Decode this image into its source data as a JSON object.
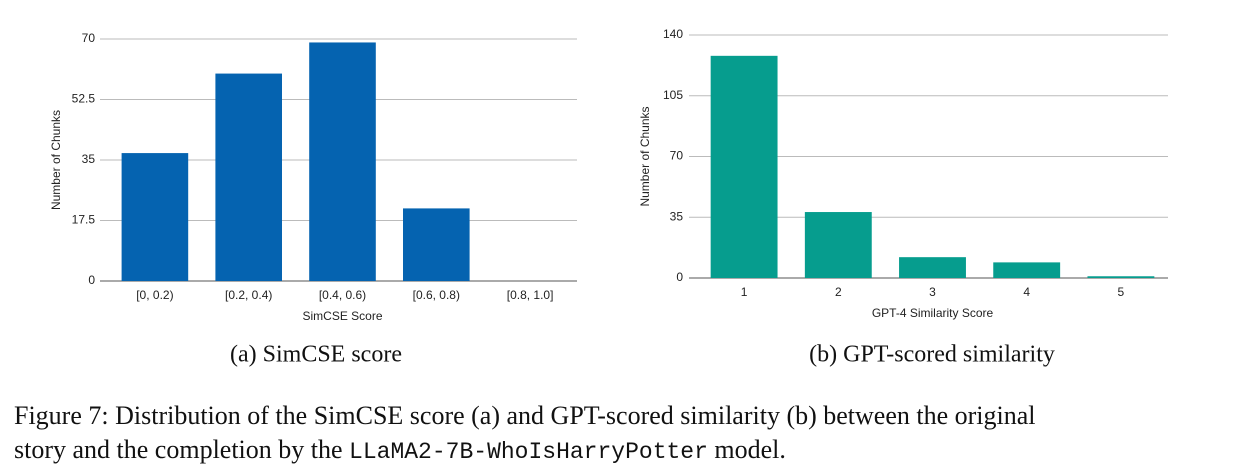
{
  "chart_data": [
    {
      "type": "bar",
      "caption": "(a) SimCSE score",
      "x_label": "SimCSE Score",
      "y_label": "Number of Chunks",
      "categories": [
        "[0, 0.2)",
        "[0.2, 0.4)",
        "[0.4, 0.6)",
        "[0.6, 0.8)",
        "[0.8, 1.0]"
      ],
      "values": [
        37,
        60,
        69,
        21,
        0
      ],
      "color": "#0563b0",
      "ylim": [
        0,
        70
      ],
      "yticks": [
        0,
        17.5,
        35,
        52.5,
        70
      ],
      "grid": true
    },
    {
      "type": "bar",
      "caption": "(b) GPT-scored similarity",
      "x_label": "GPT-4 Similarity Score",
      "y_label": "Number of Chunks",
      "categories": [
        "1",
        "2",
        "3",
        "4",
        "5"
      ],
      "values": [
        128,
        38,
        12,
        9,
        1
      ],
      "color": "#069d8e",
      "ylim": [
        0,
        140
      ],
      "yticks": [
        0,
        35,
        70,
        105,
        140
      ],
      "grid": true
    }
  ],
  "figure_caption": {
    "line1": "Figure 7: Distribution of the SimCSE score (a) and GPT-scored similarity (b) between the original",
    "line2_start": "story and the completion by the",
    "model": "LLaMA2-7B-WhoIsHarryPotter",
    "line2_end": "model."
  }
}
